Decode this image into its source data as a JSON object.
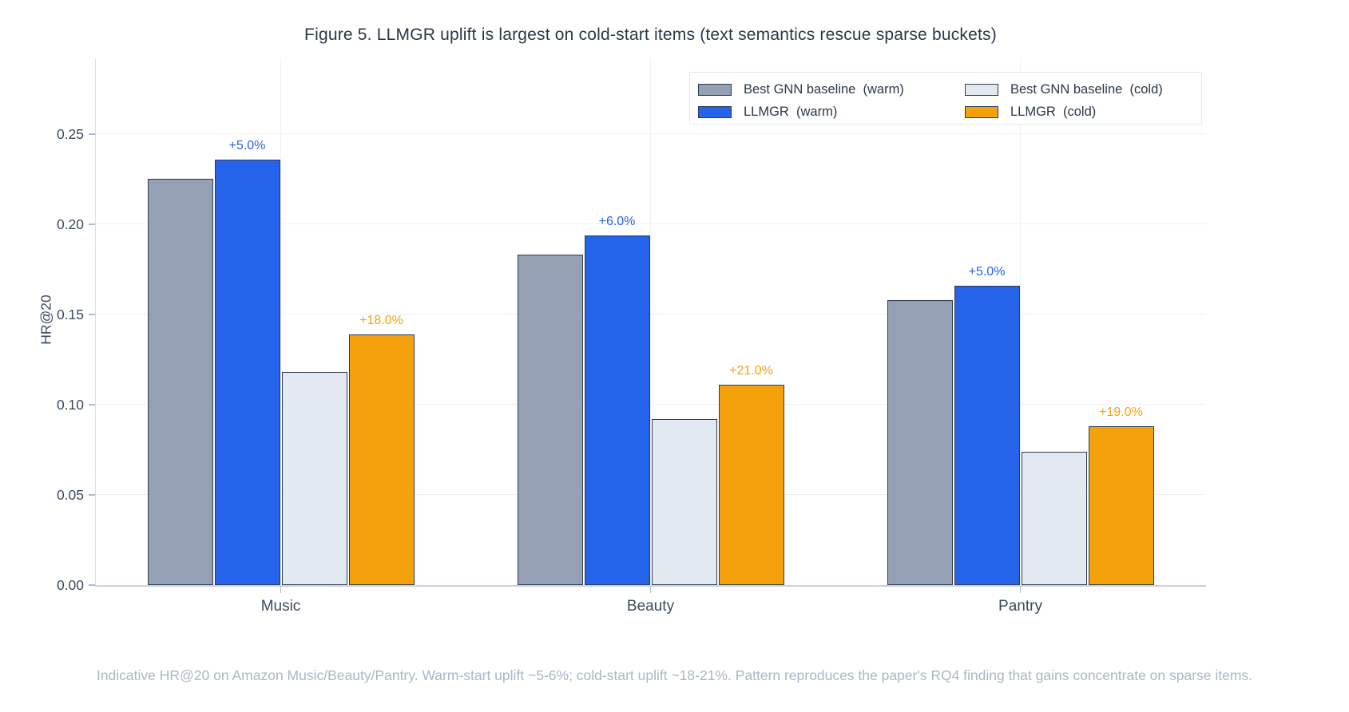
{
  "chart_data": {
    "type": "bar",
    "title": "Figure 5. LLMGR uplift is largest on cold-start items (text semantics rescue sparse buckets)",
    "ylabel": "HR@20",
    "xlabel": "",
    "categories": [
      "Music",
      "Beauty",
      "Pantry"
    ],
    "series": [
      {
        "name": "Best GNN baseline  (warm)",
        "color": "#94a1b5",
        "values": [
          0.225,
          0.183,
          0.158
        ],
        "labels": [
          null,
          null,
          null
        ]
      },
      {
        "name": "LLMGR  (warm)",
        "color": "#2563eb",
        "values": [
          0.236,
          0.194,
          0.166
        ],
        "labels": [
          "+5.0%",
          "+6.0%",
          "+5.0%"
        ]
      },
      {
        "name": "Best GNN baseline  (cold)",
        "color": "#e3e9f0",
        "values": [
          0.118,
          0.092,
          0.074
        ],
        "labels": [
          null,
          null,
          null
        ]
      },
      {
        "name": "LLMGR  (cold)",
        "color": "#f5a10c",
        "values": [
          0.139,
          0.111,
          0.088
        ],
        "labels": [
          "+18.0%",
          "+21.0%",
          "+19.0%"
        ]
      }
    ],
    "yticks": [
      0,
      0.05,
      0.1,
      0.15,
      0.2,
      0.25
    ],
    "ytick_labels": [
      "0.00",
      "0.05",
      "0.10",
      "0.15",
      "0.20",
      "0.25"
    ],
    "ylim": [
      0,
      0.292
    ],
    "grid": true,
    "legend_position": "top-right",
    "bar_border_color": "#2e3b50",
    "caption": "Indicative HR@20 on Amazon Music/Beauty/Pantry. Warm-start uplift ~5-6%; cold-start uplift ~18-21%. Pattern reproduces the paper's RQ4 finding that gains concentrate on sparse items."
  }
}
